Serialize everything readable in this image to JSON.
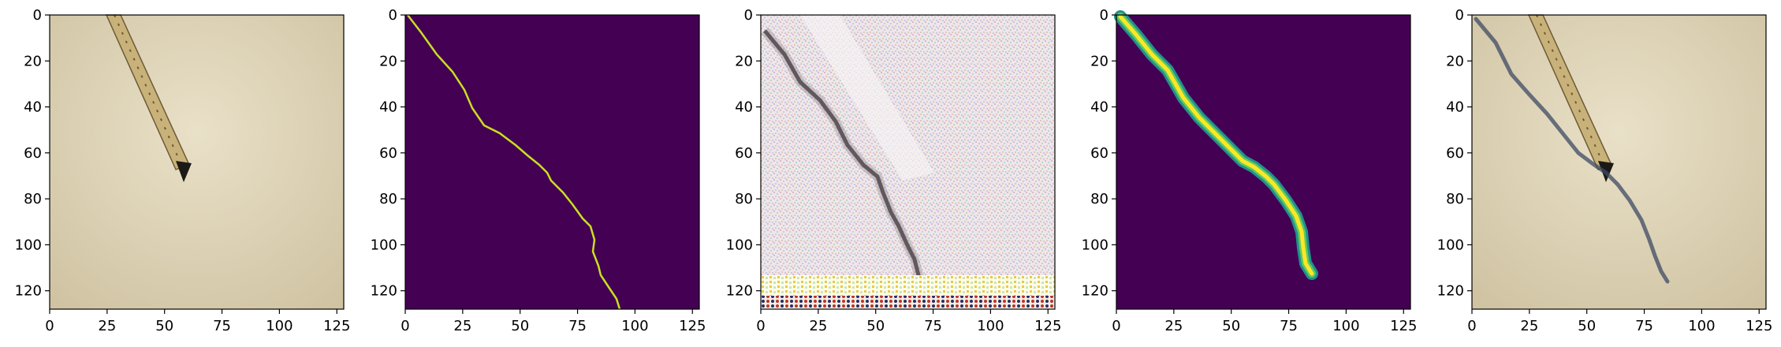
{
  "panels": [
    {
      "id": "photo",
      "kind": "photo",
      "description_note": "",
      "colors": {
        "bg_light": "#e6dcc2",
        "bg_mid": "#d2c6a6",
        "tape": "#c9b27a",
        "tape_dark": "#6b5a36",
        "tip": "#1c1a16"
      }
    },
    {
      "id": "thin-mask",
      "kind": "mask",
      "colors": {
        "bg": "#440154",
        "line": "#c8e020"
      }
    },
    {
      "id": "gan-output",
      "kind": "generated",
      "colors": {
        "bg": "#efe6ea",
        "crack": "#4b4448",
        "noise_a": "#d9b8d0",
        "noise_b": "#b7d7c9",
        "band": "#fffde8"
      }
    },
    {
      "id": "heatmap",
      "kind": "heatmap",
      "colors": {
        "bg": "#440154",
        "outer": "#21918c",
        "mid": "#5ec962",
        "core": "#fde725"
      }
    },
    {
      "id": "overlay",
      "kind": "overlay",
      "colors": {
        "bg_light": "#e6dcc2",
        "tape": "#c9b27a",
        "crack": "#3e4a63"
      }
    }
  ],
  "axes": {
    "x_ticks": [
      "0",
      "25",
      "50",
      "75",
      "100",
      "125"
    ],
    "y_ticks": [
      "0",
      "20",
      "40",
      "60",
      "80",
      "100",
      "120"
    ],
    "range": [
      0,
      128
    ]
  }
}
